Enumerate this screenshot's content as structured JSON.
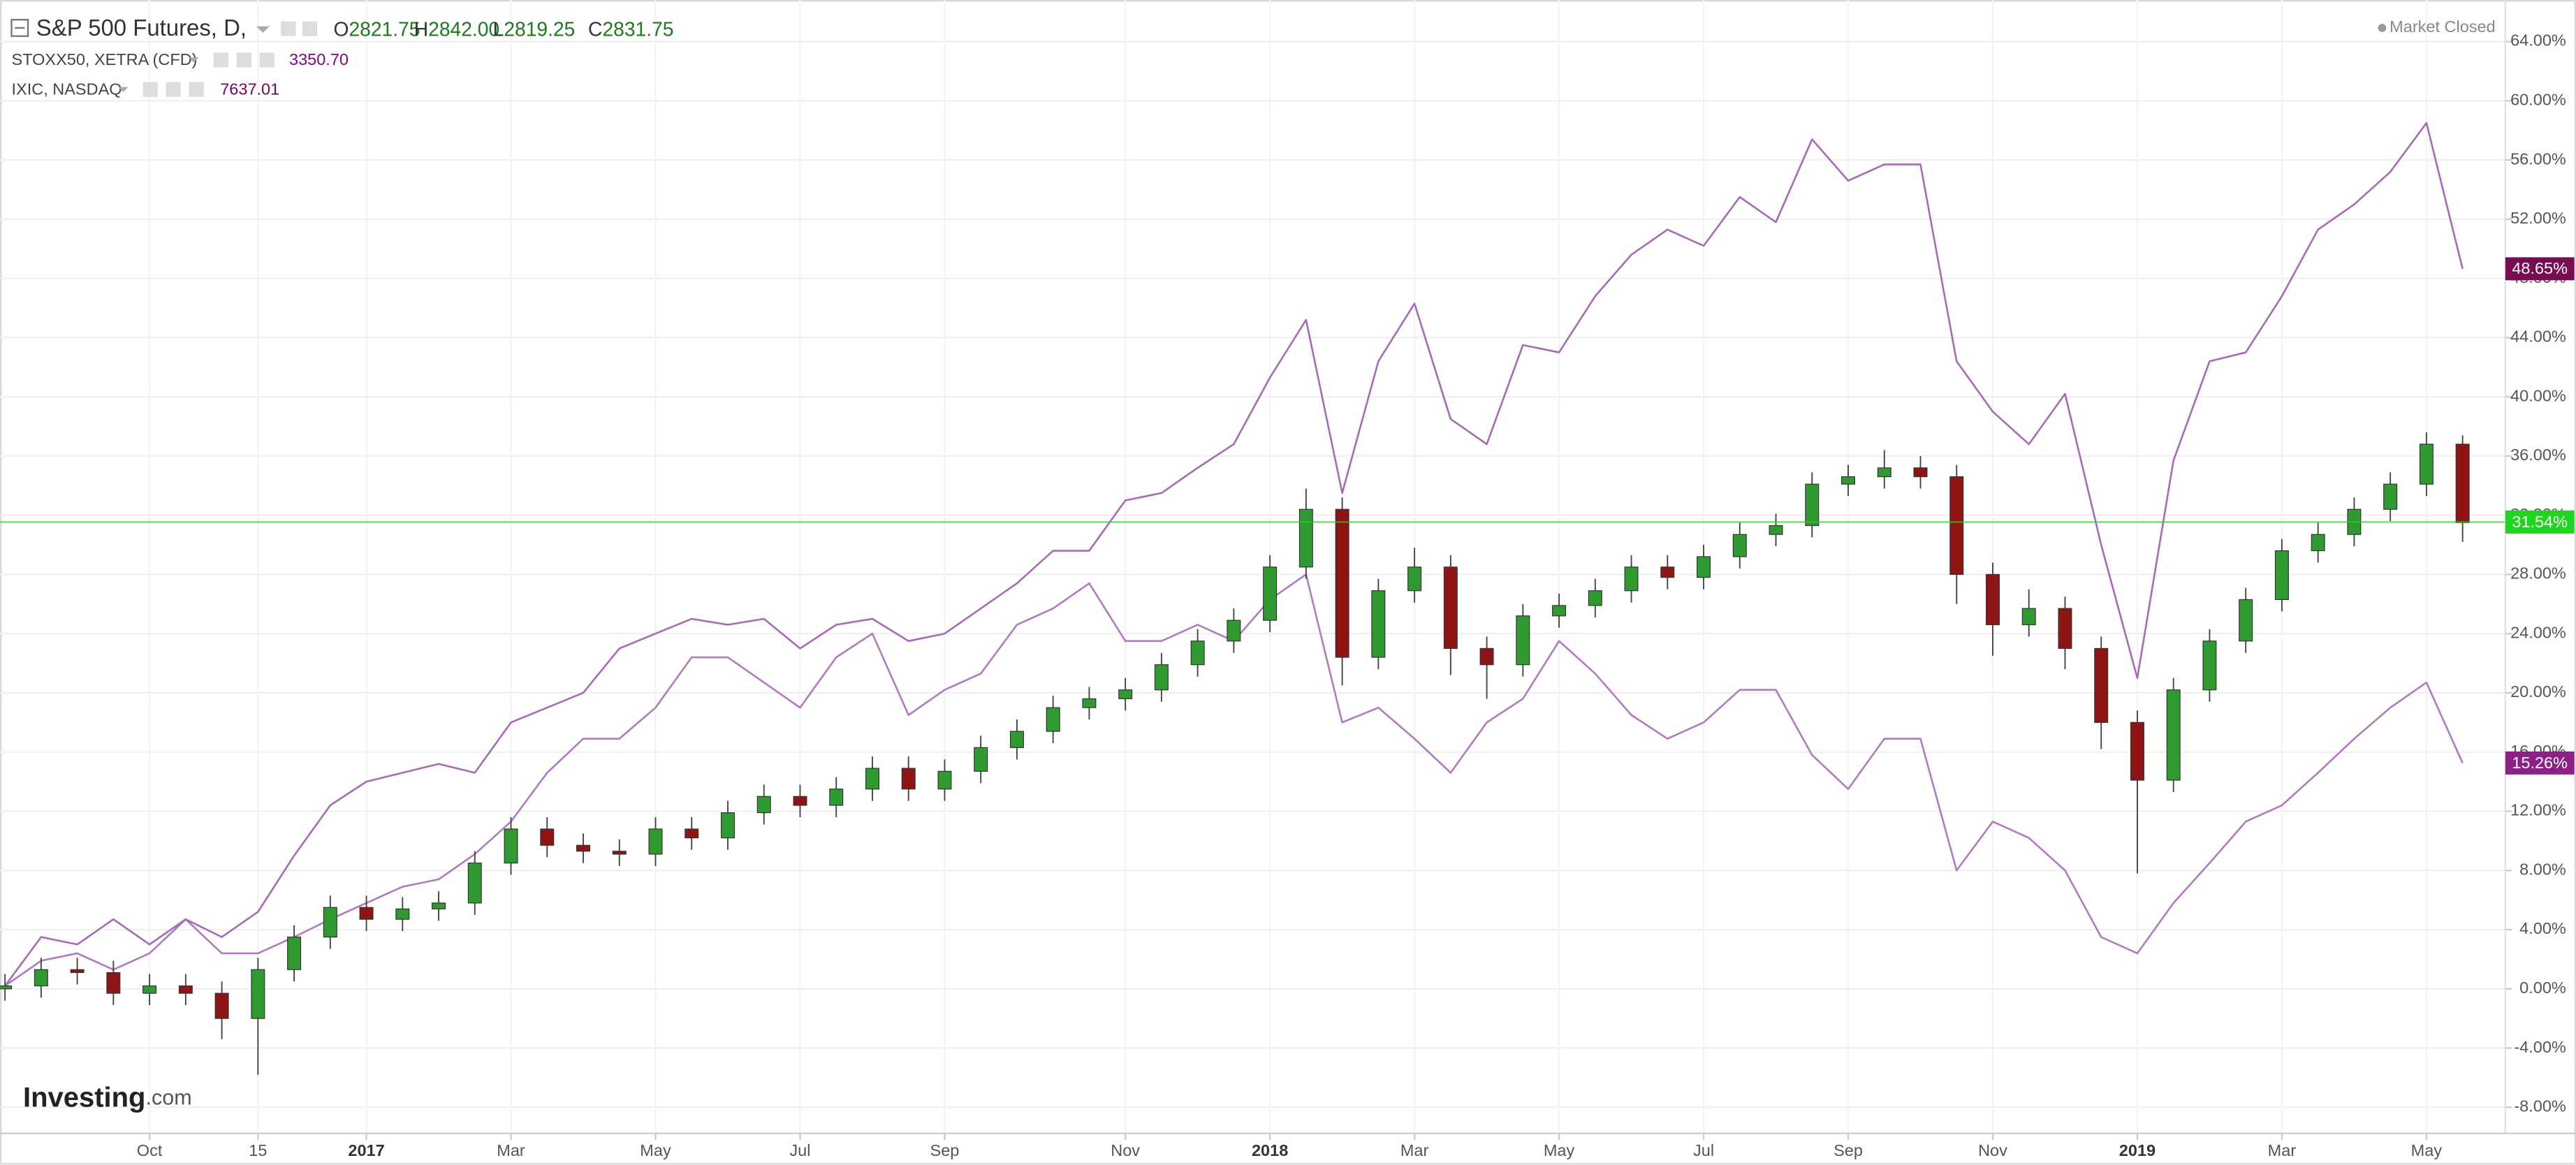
{
  "chart_data": {
    "type": "candlestick",
    "status": "Market Closed",
    "watermark": [
      "Investing",
      ".com"
    ],
    "categories": [
      null,
      null,
      null,
      null,
      "Oct",
      null,
      null,
      "15",
      null,
      null,
      "2017",
      null,
      null,
      null,
      "Mar",
      null,
      null,
      null,
      "May",
      null,
      null,
      null,
      "Jul",
      null,
      null,
      null,
      "Sep",
      null,
      null,
      null,
      null,
      "Nov",
      null,
      null,
      null,
      "2018",
      null,
      null,
      null,
      "Mar",
      null,
      null,
      null,
      "May",
      null,
      null,
      null,
      "Jul",
      null,
      null,
      null,
      "Sep",
      null,
      null,
      null,
      "Nov",
      null,
      null,
      null,
      "2019",
      null,
      null,
      null,
      "Mar",
      null,
      null,
      null,
      "May",
      null
    ],
    "ylim": [
      -9.77,
      66.81
    ],
    "yticks": [
      {
        "value": -8,
        "label": "-8.00%"
      },
      {
        "value": -4,
        "label": "-4.00%"
      },
      {
        "value": 0,
        "label": "0.00%"
      },
      {
        "value": 4,
        "label": "4.00%"
      },
      {
        "value": 8,
        "label": "8.00%"
      },
      {
        "value": 12,
        "label": "12.00%"
      },
      {
        "value": 16,
        "label": "16.00%"
      },
      {
        "value": 20,
        "label": "20.00%"
      },
      {
        "value": 24,
        "label": "24.00%"
      },
      {
        "value": 28,
        "label": "28.00%"
      },
      {
        "value": 32,
        "label": "32.00%"
      },
      {
        "value": 36,
        "label": "36.00%"
      },
      {
        "value": 40,
        "label": "40.00%"
      },
      {
        "value": 44,
        "label": "44.00%"
      },
      {
        "value": 48,
        "label": "48.00%"
      },
      {
        "value": 52,
        "label": "52.00%"
      },
      {
        "value": 56,
        "label": "56.00%"
      },
      {
        "value": 60,
        "label": "60.00%"
      },
      {
        "value": 64,
        "label": "64.00%"
      }
    ],
    "grid": true,
    "series": [
      {
        "type": "candlestick",
        "name": "S&P 500 Futures, D,",
        "quote": [
          {
            "key": "O",
            "value": "2821.75"
          },
          {
            "key": "H",
            "value": "2842.00"
          },
          {
            "key": "L",
            "value": "2819.25"
          },
          {
            "key": "C",
            "value": "2831.75"
          }
        ],
        "up_color": "#2f9a2f",
        "down_color": "#8f1515",
        "open": [
          0,
          0.2,
          1.3,
          1.1,
          -0.3,
          0.2,
          -0.3,
          -2,
          1.3,
          3.5,
          5.5,
          4.7,
          5.4,
          5.8,
          8.5,
          10.8,
          9.7,
          9.3,
          9.1,
          10.8,
          10.2,
          11.9,
          13,
          12.4,
          13.5,
          14.9,
          13.5,
          14.7,
          16.3,
          17.4,
          19,
          19.6,
          20.2,
          21.9,
          23.5,
          24.9,
          28.5,
          32.4,
          22.4,
          26.9,
          28.5,
          23,
          21.9,
          25.2,
          25.9,
          26.9,
          28.5,
          27.8,
          29.2,
          30.7,
          31.3,
          34.1,
          34.6,
          35.2,
          34.6,
          28,
          24.6,
          25.7,
          23,
          18,
          14.1,
          20.2,
          23.5,
          26.3,
          29.6,
          30.7,
          32.4,
          34.1,
          36.8
        ],
        "high": [
          1.0,
          2.1,
          2.1,
          1.9,
          1.0,
          1.0,
          0.5,
          2.1,
          4.3,
          6.3,
          6.3,
          6.2,
          6.6,
          9.3,
          11.6,
          11.6,
          10.5,
          10.1,
          11.6,
          11.6,
          12.7,
          13.8,
          13.8,
          14.3,
          15.7,
          15.7,
          15.5,
          17.1,
          18.2,
          19.8,
          20.4,
          21.0,
          22.7,
          24.3,
          25.7,
          29.3,
          33.8,
          33.2,
          27.7,
          29.8,
          29.3,
          23.8,
          26.0,
          26.7,
          27.7,
          29.3,
          29.3,
          30.0,
          31.5,
          32.1,
          34.9,
          35.4,
          36.4,
          36.0,
          35.4,
          28.8,
          27.0,
          26.5,
          23.8,
          18.8,
          21.0,
          24.3,
          27.1,
          30.4,
          31.5,
          33.2,
          34.9,
          37.6,
          37.4
        ],
        "low": [
          -0.8,
          -0.6,
          0.3,
          -1.1,
          -1.1,
          -1.1,
          -3.4,
          -5.8,
          0.5,
          2.7,
          3.9,
          3.9,
          4.6,
          5.0,
          7.7,
          8.9,
          8.5,
          8.3,
          8.3,
          9.4,
          9.4,
          11.1,
          11.6,
          11.6,
          12.7,
          12.7,
          12.7,
          13.9,
          15.5,
          16.6,
          18.2,
          18.8,
          19.4,
          21.1,
          22.7,
          24.1,
          27.7,
          20.5,
          21.6,
          26.1,
          21.2,
          19.6,
          21.1,
          24.4,
          25.1,
          26.1,
          27.0,
          27.0,
          28.4,
          29.9,
          30.5,
          33.3,
          33.8,
          33.8,
          26.0,
          22.5,
          23.8,
          21.6,
          16.2,
          7.8,
          13.3,
          19.4,
          22.7,
          25.5,
          28.8,
          29.9,
          31.6,
          33.3,
          30.2
        ],
        "close": [
          0.2,
          1.3,
          1.1,
          -0.3,
          0.2,
          -0.3,
          -2,
          1.3,
          3.5,
          5.5,
          4.7,
          5.4,
          5.8,
          8.5,
          10.8,
          9.7,
          9.3,
          9.1,
          10.8,
          10.2,
          11.9,
          13,
          12.4,
          13.5,
          14.9,
          13.5,
          14.7,
          16.3,
          17.4,
          19,
          19.6,
          20.2,
          21.9,
          23.5,
          24.9,
          28.5,
          32.4,
          22.4,
          26.9,
          28.5,
          23,
          21.9,
          25.2,
          25.9,
          26.9,
          28.5,
          27.8,
          29.2,
          30.7,
          31.3,
          34.1,
          34.6,
          35.2,
          34.6,
          28,
          24.6,
          25.7,
          23,
          18,
          14.1,
          20.2,
          23.5,
          26.3,
          29.6,
          30.7,
          32.4,
          34.1,
          36.8,
          31.5
        ],
        "last": {
          "value": 31.54,
          "label": "31.54%"
        },
        "last_color": "#1fd61f",
        "last_line": true
      },
      {
        "type": "line",
        "name": "STOXX50, XETRA (CFD)",
        "legend_value": "3350.70",
        "color": "#b07ac0",
        "values": [
          0.2,
          1.9,
          2.4,
          1.3,
          2.4,
          4.7,
          2.4,
          2.4,
          3.5,
          4.7,
          5.8,
          6.9,
          7.4,
          9.1,
          11.3,
          14.6,
          16.9,
          16.9,
          19.0,
          22.4,
          22.4,
          20.7,
          19.0,
          22.4,
          24.0,
          18.5,
          20.2,
          21.3,
          24.6,
          25.7,
          27.4,
          23.5,
          23.5,
          24.6,
          23.5,
          26.3,
          28.0,
          18.0,
          19.0,
          16.9,
          14.6,
          18.0,
          19.6,
          23.5,
          21.3,
          18.5,
          16.9,
          18.0,
          20.2,
          20.2,
          15.8,
          13.5,
          16.9,
          16.9,
          8.0,
          11.3,
          10.2,
          8.0,
          3.5,
          2.4,
          5.8,
          8.5,
          11.3,
          12.4,
          14.6,
          16.9,
          19.0,
          20.7,
          15.26
        ],
        "last": {
          "value": 15.26,
          "label": "15.26%"
        },
        "last_color": "#8e1f86",
        "last_line": false
      },
      {
        "type": "line",
        "name": "IXIC, NASDAQ",
        "legend_value": "7637.01",
        "color": "#a869b8",
        "values": [
          0.2,
          3.5,
          3.0,
          4.7,
          3.0,
          4.7,
          3.5,
          5.2,
          9.0,
          12.4,
          14.0,
          14.6,
          15.2,
          14.6,
          18.0,
          19.0,
          20.0,
          23.0,
          24.0,
          25.0,
          24.6,
          25.0,
          23.0,
          24.6,
          25.0,
          23.5,
          24.0,
          25.7,
          27.4,
          29.6,
          29.6,
          33.0,
          33.5,
          35.2,
          36.8,
          41.3,
          45.2,
          33.5,
          42.4,
          46.3,
          38.5,
          36.8,
          43.5,
          43.0,
          46.8,
          49.6,
          51.3,
          50.2,
          53.5,
          51.8,
          57.4,
          54.6,
          55.7,
          55.7,
          42.4,
          39.0,
          36.8,
          40.2,
          30.0,
          21.0,
          35.7,
          42.4,
          43.0,
          46.8,
          51.3,
          53.0,
          55.2,
          58.5,
          48.65
        ],
        "last": {
          "value": 48.65,
          "label": "48.65%"
        },
        "last_color": "#7a0c52",
        "last_line": false
      }
    ]
  }
}
